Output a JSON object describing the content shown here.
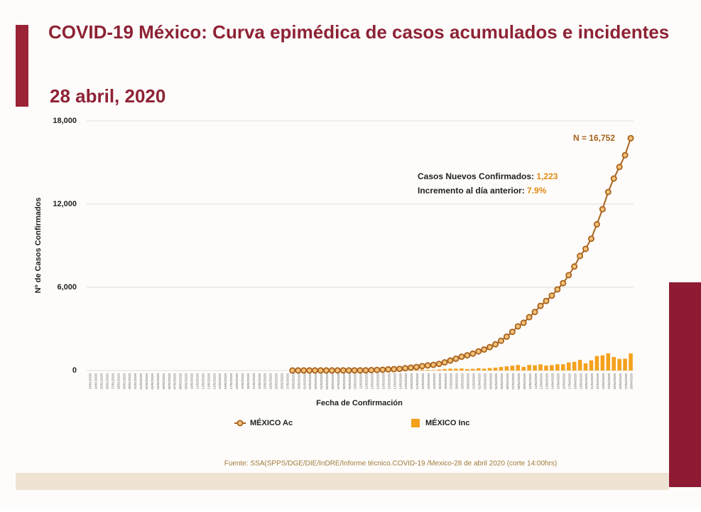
{
  "chart_data": {
    "type": "line-bar",
    "title": "COVID-19 México: Curva epimédica de casos acumulados e incidentes",
    "subtitle": "28 abril, 2020",
    "x_label": "Fecha de Confirmación",
    "y_label": "Nº de Casos Confirmados",
    "source": "Fuente: SSA(SPPS/DGE/DIE/InDRE/Informe técnico.COVID-19 /Mexico-28 de abril 2020 (corte 14:00hrs)",
    "annotations": {
      "total": "N = 16,752",
      "new_cases_label": "Casos Nuevos Confirmados:",
      "new_cases_value": "1,223",
      "increment_label": "Incremento al día anterior:",
      "increment_value": "7.9%"
    },
    "categories": [
      "23/01/2020",
      "24/01/2020",
      "25/01/2020",
      "26/01/2020",
      "27/01/2020",
      "28/01/2020",
      "29/01/2020",
      "30/01/2020",
      "31/01/2020",
      "01/02/2020",
      "02/02/2020",
      "03/02/2020",
      "04/02/2020",
      "05/02/2020",
      "06/02/2020",
      "07/02/2020",
      "08/02/2020",
      "09/02/2020",
      "10/02/2020",
      "11/02/2020",
      "12/02/2020",
      "13/02/2020",
      "14/02/2020",
      "15/02/2020",
      "16/02/2020",
      "17/02/2020",
      "18/02/2020",
      "19/02/2020",
      "20/02/2020",
      "21/02/2020",
      "22/02/2020",
      "23/02/2020",
      "24/02/2020",
      "25/02/2020",
      "26/02/2020",
      "27/02/2020",
      "28/02/2020",
      "29/02/2020",
      "01/03/2020",
      "02/03/2020",
      "03/03/2020",
      "04/03/2020",
      "05/03/2020",
      "06/03/2020",
      "07/03/2020",
      "08/03/2020",
      "09/03/2020",
      "10/03/2020",
      "11/03/2020",
      "12/03/2020",
      "13/03/2020",
      "14/03/2020",
      "15/03/2020",
      "16/03/2020",
      "17/03/2020",
      "18/03/2020",
      "19/03/2020",
      "20/03/2020",
      "21/03/2020",
      "22/03/2020",
      "23/03/2020",
      "24/03/2020",
      "25/03/2020",
      "26/03/2020",
      "27/03/2020",
      "28/03/2020",
      "29/03/2020",
      "30/03/2020",
      "31/03/2020",
      "01/04/2020",
      "02/04/2020",
      "03/04/2020",
      "04/04/2020",
      "05/04/2020",
      "06/04/2020",
      "07/04/2020",
      "08/04/2020",
      "09/04/2020",
      "10/04/2020",
      "11/04/2020",
      "12/04/2020",
      "13/04/2020",
      "14/04/2020",
      "15/04/2020",
      "16/04/2020",
      "17/04/2020",
      "18/04/2020",
      "19/04/2020",
      "20/04/2020",
      "21/04/2020",
      "22/04/2020",
      "23/04/2020",
      "24/04/2020",
      "25/04/2020",
      "26/04/2020",
      "27/04/2020",
      "28/04/2020"
    ],
    "series": [
      {
        "name": "MÉXICO Ac",
        "kind": "line",
        "color": "#a8621c",
        "values": [
          null,
          null,
          null,
          null,
          null,
          null,
          null,
          null,
          null,
          null,
          null,
          null,
          null,
          null,
          null,
          null,
          null,
          null,
          null,
          null,
          null,
          null,
          null,
          null,
          null,
          null,
          null,
          null,
          null,
          null,
          null,
          null,
          null,
          null,
          null,
          null,
          1,
          4,
          5,
          5,
          5,
          5,
          5,
          6,
          7,
          7,
          7,
          7,
          8,
          12,
          26,
          41,
          53,
          82,
          93,
          118,
          164,
          203,
          251,
          316,
          367,
          405,
          475,
          585,
          717,
          848,
          993,
          1094,
          1215,
          1378,
          1510,
          1688,
          1890,
          2143,
          2439,
          2785,
          3181,
          3441,
          3844,
          4219,
          4661,
          5014,
          5399,
          5847,
          6297,
          6875,
          7497,
          8261,
          8772,
          9501,
          10544,
          11633,
          12872,
          13842,
          14677,
          15529,
          16752
        ]
      },
      {
        "name": "MÉXICO Inc",
        "kind": "bar",
        "color": "#f5a11c",
        "values": [
          null,
          null,
          null,
          null,
          null,
          null,
          null,
          null,
          null,
          null,
          null,
          null,
          null,
          null,
          null,
          null,
          null,
          null,
          null,
          null,
          null,
          null,
          null,
          null,
          null,
          null,
          null,
          null,
          null,
          null,
          null,
          null,
          null,
          null,
          null,
          null,
          1,
          3,
          1,
          0,
          0,
          0,
          0,
          1,
          1,
          0,
          0,
          0,
          1,
          4,
          14,
          15,
          12,
          29,
          11,
          25,
          46,
          39,
          48,
          65,
          51,
          38,
          70,
          110,
          132,
          131,
          145,
          101,
          121,
          163,
          132,
          178,
          202,
          253,
          296,
          346,
          396,
          260,
          403,
          375,
          442,
          353,
          385,
          448,
          450,
          578,
          622,
          764,
          511,
          729,
          1043,
          1089,
          1239,
          970,
          835,
          852,
          1223
        ]
      }
    ],
    "ylim": [
      0,
      18000
    ],
    "yticks": [
      0,
      {
        "value": 6000,
        "label": "6,000"
      },
      {
        "value": 12000,
        "label": "12,000"
      },
      {
        "value": 18000,
        "label": "18,000"
      }
    ],
    "grid": true
  }
}
